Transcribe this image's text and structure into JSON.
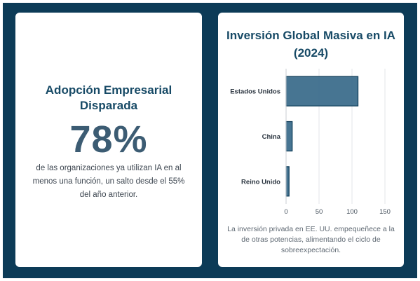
{
  "stat_card": {
    "title": "Adopción Empresarial Disparada",
    "value": "78%",
    "description": "de las organizaciones ya utilizan IA en al menos una función, un salto desde el 55% del año anterior."
  },
  "chart_card": {
    "title": "Inversión Global Masiva en IA (2024)",
    "caption": "La inversión privada en EE. UU. empequeñece a la de otras potencias, alimentando el ciclo de sobreexpectación."
  },
  "chart_data": {
    "type": "bar",
    "orientation": "horizontal",
    "title": "Inversión Global Masiva en IA (2024)",
    "xlabel": "",
    "ylabel": "",
    "categories": [
      "Estados Unidos",
      "China",
      "Reino Unido"
    ],
    "values": [
      109.1,
      9.3,
      4.5
    ],
    "xlim": [
      0,
      150
    ],
    "xticks": [
      0,
      50,
      100,
      150
    ],
    "grid": "vertical",
    "bar_color": "#3d6e8c",
    "bar_border": "#0c3b57"
  },
  "colors": {
    "background": "#0c3b57",
    "card": "#ffffff",
    "accent": "#174a66",
    "stat_value": "#3c5c73"
  }
}
